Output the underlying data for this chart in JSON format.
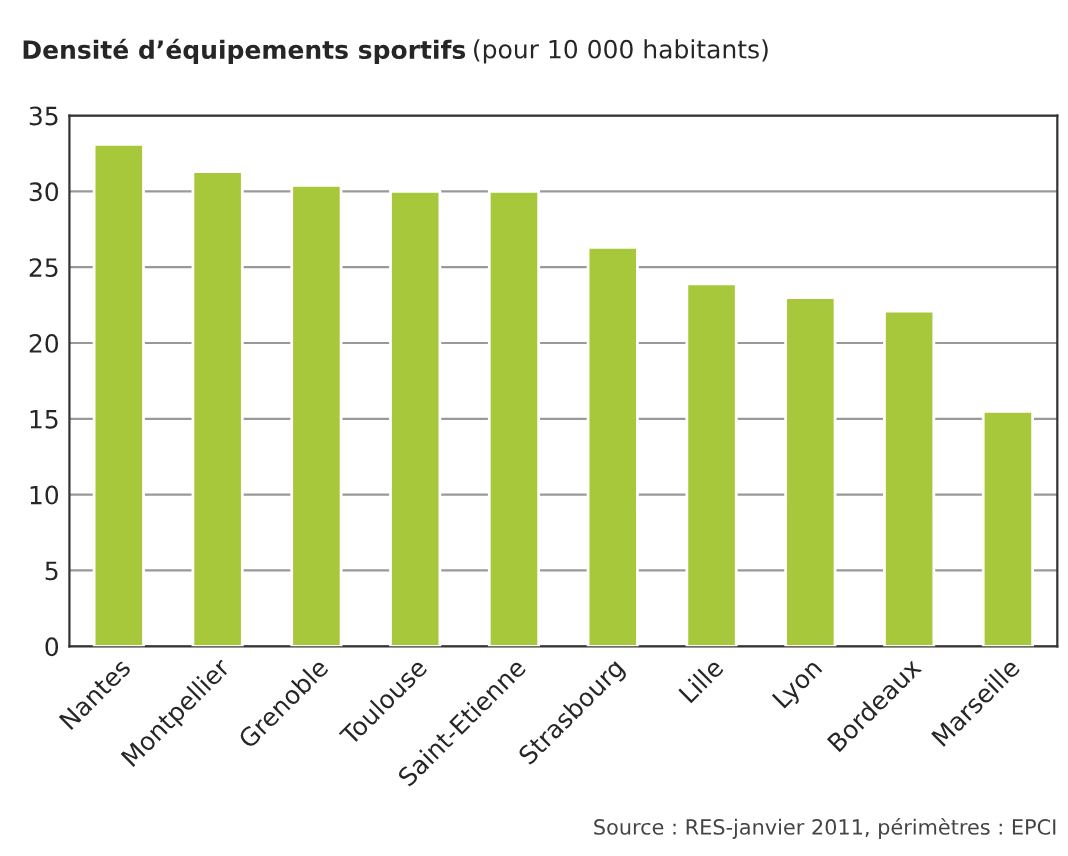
{
  "chart_data": {
    "type": "bar",
    "title": "Densité d’équipements sportifs",
    "subtitle": "(pour 10 000 habitants)",
    "categories": [
      "Nantes",
      "Montpellier",
      "Grenoble",
      "Toulouse",
      "Saint-Etienne",
      "Strasbourg",
      "Lille",
      "Lyon",
      "Bordeaux",
      "Marseille"
    ],
    "values": [
      33.1,
      31.3,
      30.4,
      30.0,
      30.0,
      26.3,
      23.9,
      23.0,
      22.1,
      15.5
    ],
    "color": "#a8c83c",
    "ylim": [
      0,
      35
    ],
    "yticks": [
      0,
      5,
      10,
      15,
      20,
      25,
      30,
      35
    ],
    "grid": "y",
    "annotations": [
      "Source : RES-janvier 2011, périmètres : EPCI"
    ]
  }
}
